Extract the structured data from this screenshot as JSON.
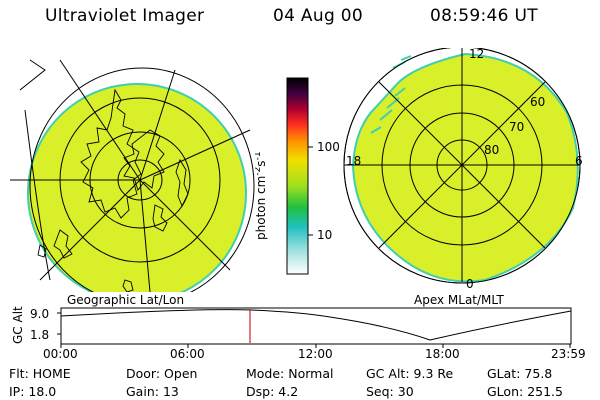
{
  "header": {
    "instrument": "Ultraviolet Imager",
    "date": "04 Aug 00",
    "time": "08:59:46 UT"
  },
  "left_panel": {
    "caption": "Geographic Lat/Lon"
  },
  "colorbar": {
    "unit_label": "photon cm",
    "unit_exp1": "-2",
    "unit_mid": "s",
    "unit_exp2": "-1",
    "tick_100": "100",
    "tick_10": "10"
  },
  "right_panel": {
    "caption": "Apex MLat/MLT",
    "mlt_12": "12",
    "mlt_18": "18",
    "mlt_6": "6",
    "mlt_0": "0",
    "lat_60": "60",
    "lat_70": "70",
    "lat_80": "80"
  },
  "altitude_plot": {
    "ylabel": "GC Alt",
    "ytick_high": "9.0",
    "ytick_low": "1.8",
    "xticks": [
      "00:00",
      "06:00",
      "12:00",
      "18:00",
      "23:59"
    ]
  },
  "info": {
    "flt_label": "Flt:",
    "flt_value": "HOME",
    "door_label": "Door:",
    "door_value": "Open",
    "mode_label": "Mode:",
    "mode_value": "Normal",
    "gcalt_label": "GC Alt:",
    "gcalt_value": "9.3 Re",
    "glat_label": "GLat:",
    "glat_value": "75.8",
    "ip_label": "IP:",
    "ip_value": "18.0",
    "gain_label": "Gain:",
    "gain_value": "13",
    "dsp_label": "Dsp:",
    "dsp_value": "4.2",
    "seq_label": "Seq:",
    "seq_value": "30",
    "glon_label": "GLon:",
    "glon_value": "251.5"
  },
  "colors": {
    "image_fill": "#d9ef2a",
    "image_edge": "#3fcfb0",
    "marker_line": "#d0202a"
  }
}
